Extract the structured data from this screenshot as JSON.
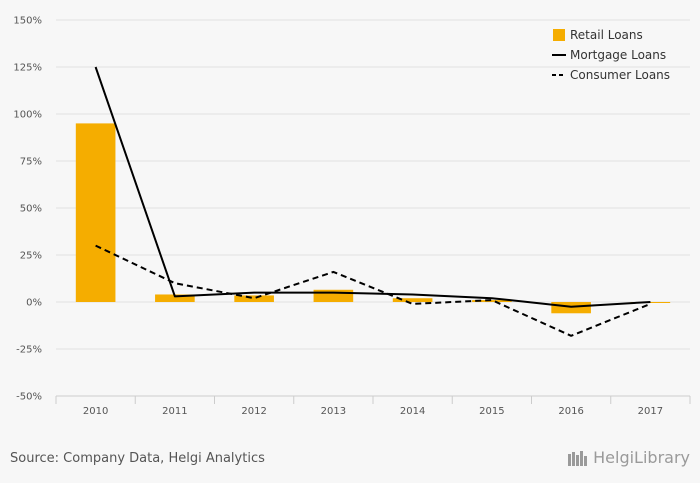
{
  "chart_data": {
    "type": "bar",
    "title": "",
    "xlabel": "",
    "ylabel": "",
    "categories": [
      "2010",
      "2011",
      "2012",
      "2013",
      "2014",
      "2015",
      "2016",
      "2017"
    ],
    "ylim": [
      -50,
      150
    ],
    "yticks": [
      -50,
      -25,
      0,
      25,
      50,
      75,
      100,
      125,
      150
    ],
    "ytick_labels": [
      "-50%",
      "-25%",
      "0%",
      "25%",
      "50%",
      "75%",
      "100%",
      "125%",
      "150%"
    ],
    "grid": true,
    "legend_position": "top-right",
    "series": [
      {
        "name": "Retail Loans",
        "kind": "bar",
        "color": "#f5ad00",
        "values": [
          95,
          4,
          3.5,
          6.5,
          2,
          1,
          -6,
          -0.5
        ]
      },
      {
        "name": "Mortgage Loans",
        "kind": "line",
        "style": "solid",
        "color": "#000000",
        "values": [
          125,
          3,
          5,
          5,
          4,
          2,
          -2.5,
          0
        ]
      },
      {
        "name": "Consumer Loans",
        "kind": "line",
        "style": "dashed",
        "color": "#000000",
        "values": [
          30,
          10,
          2,
          16,
          -1,
          1,
          -18,
          -1
        ]
      }
    ]
  },
  "footer": {
    "source": "Source: Company Data, Helgi Analytics",
    "brand": "HelgiLibrary"
  }
}
